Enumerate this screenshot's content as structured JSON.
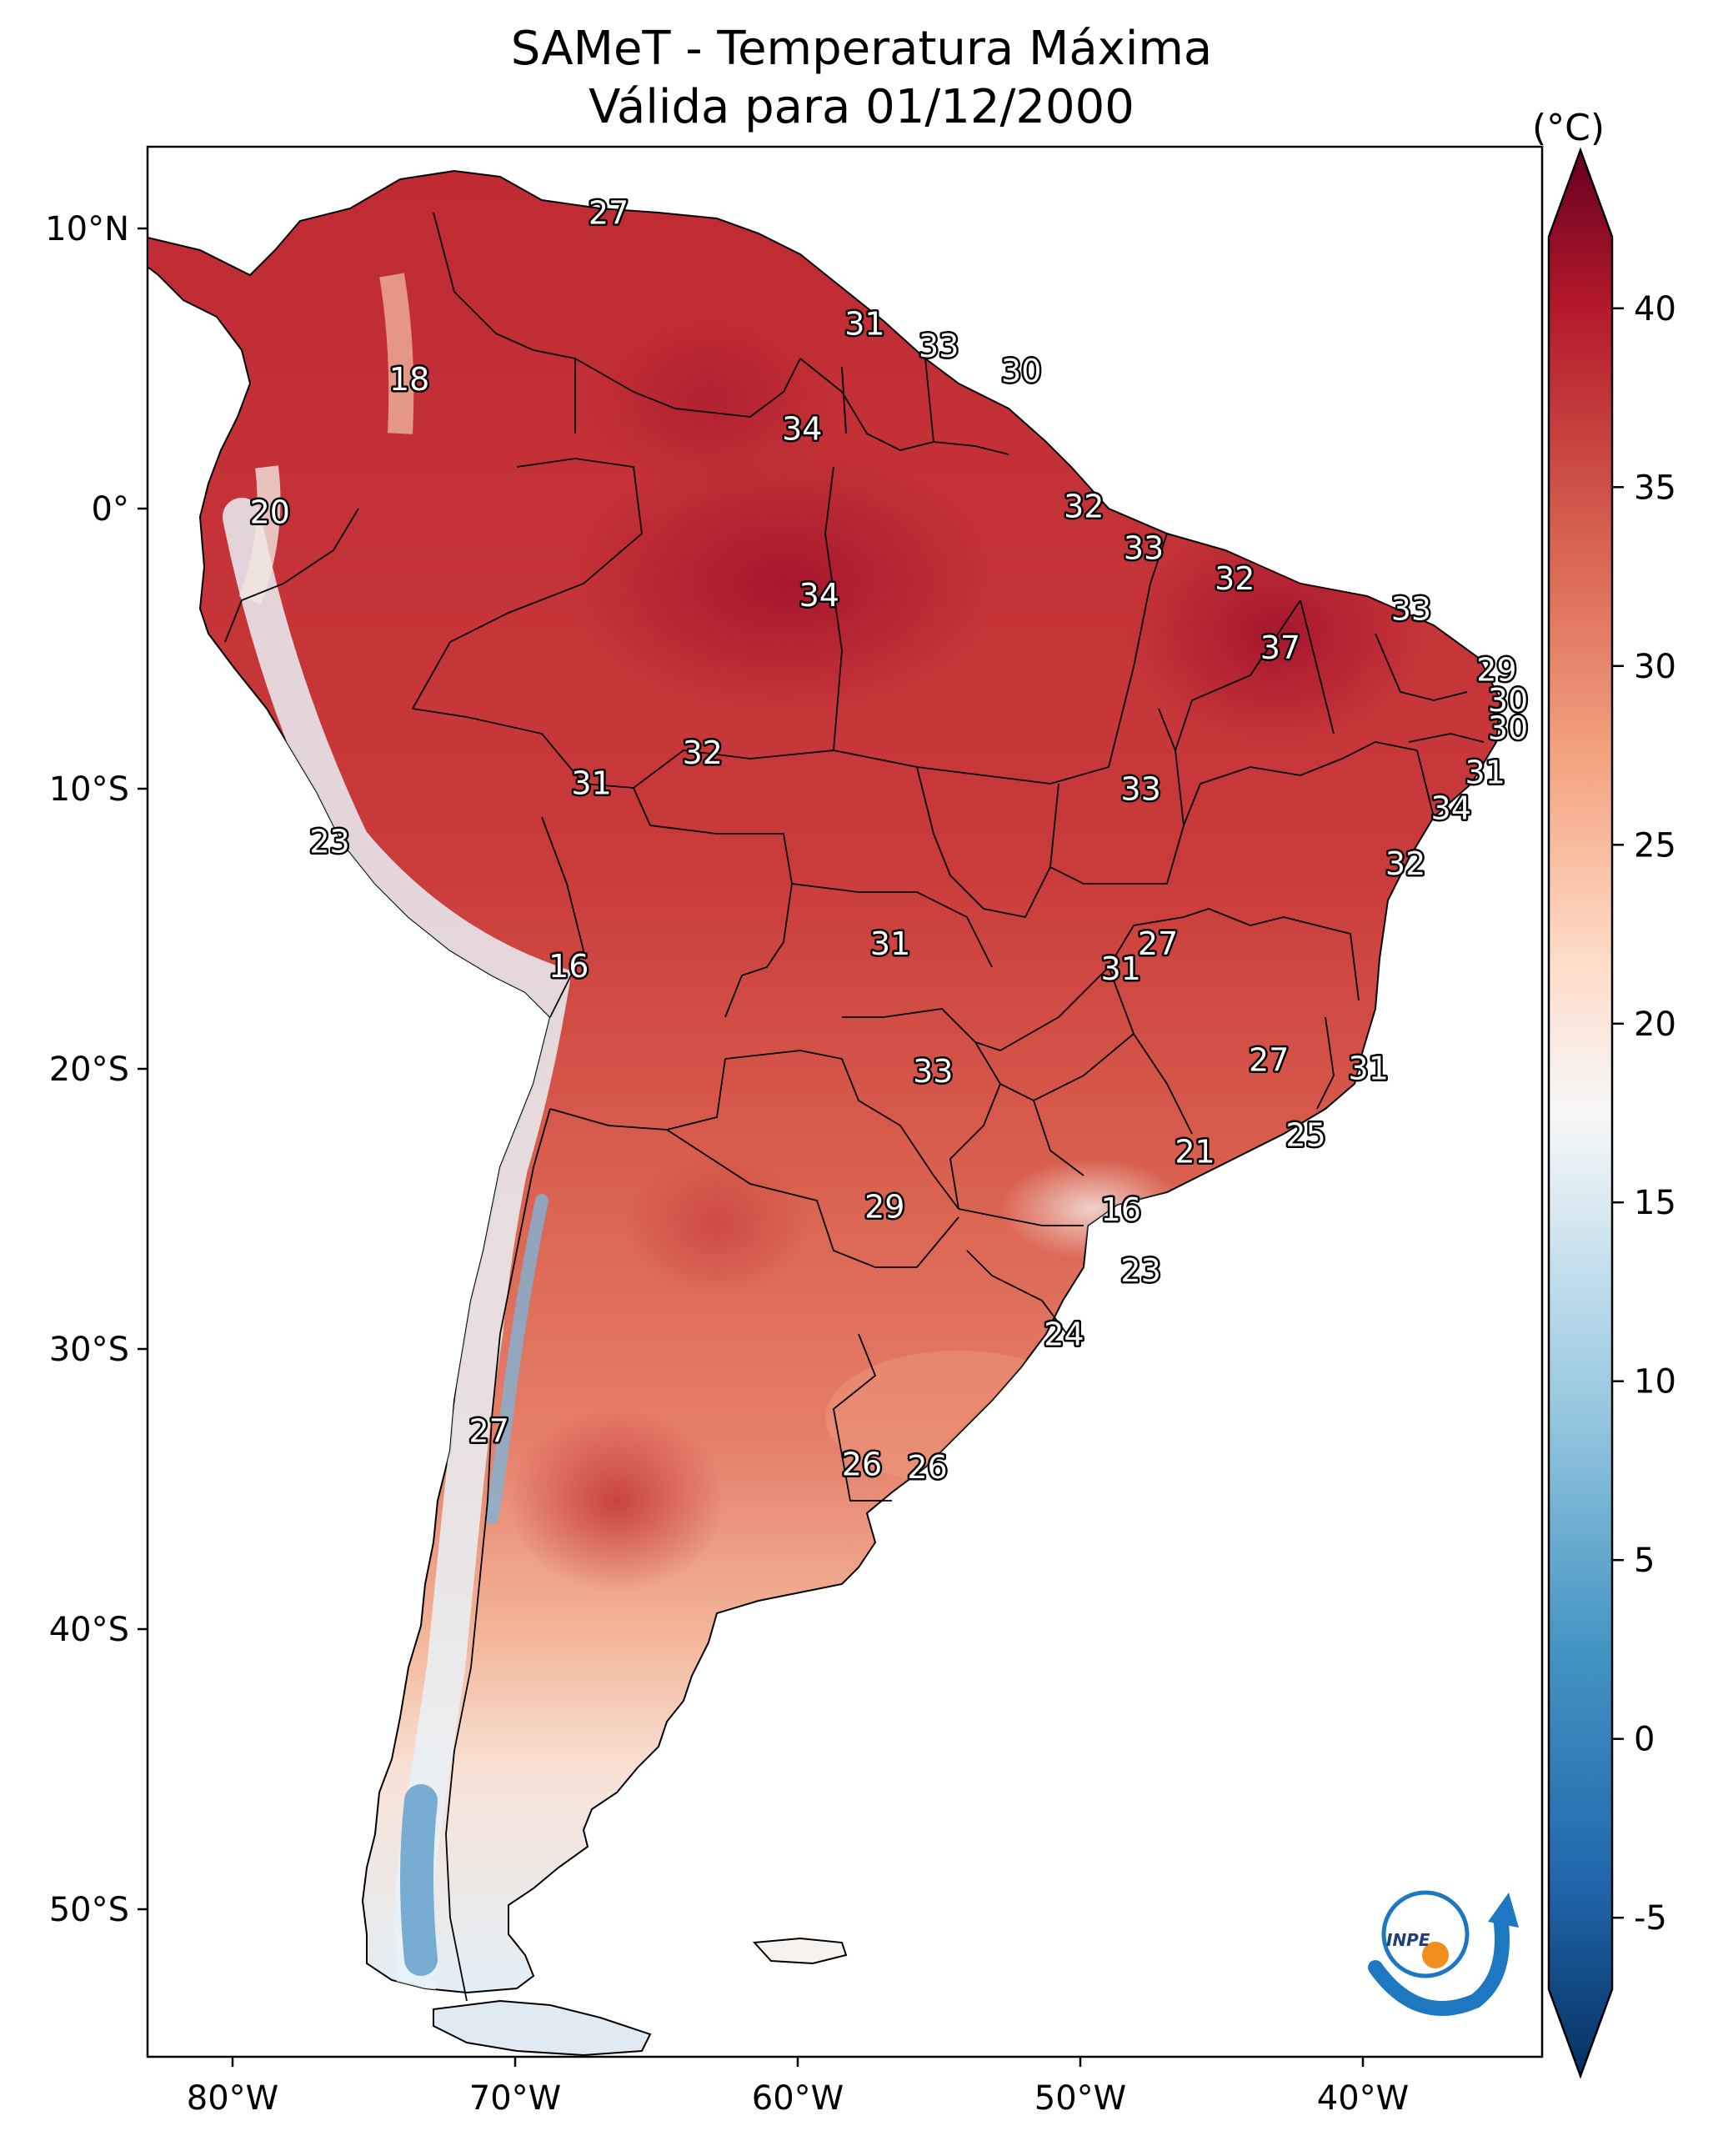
{
  "title_line1": "SAMeT - Temperatura Máxima",
  "title_line2": "Válida para 01/12/2000",
  "colorbar": {
    "unit": "(°C)",
    "ticks": [
      "40",
      "35",
      "30",
      "25",
      "20",
      "15",
      "10",
      "5",
      "0",
      "-5"
    ],
    "range": [
      -7,
      42
    ],
    "colormap": "RdBu_r"
  },
  "axes": {
    "lat_labels": [
      "10°N",
      "0°",
      "10°S",
      "20°S",
      "30°S",
      "40°S",
      "50°S"
    ],
    "lon_labels": [
      "80°W",
      "70°W",
      "60°W",
      "50°W",
      "40°W"
    ],
    "lon_range": [
      -83,
      -34
    ],
    "lat_range": [
      -56,
      13
    ]
  },
  "temperature_labels": [
    {
      "text": "27",
      "lon": -66.8,
      "lat": 10.6
    },
    {
      "text": "18",
      "lon": -73.8,
      "lat": 4.6
    },
    {
      "text": "20",
      "lon": -78.7,
      "lat": -0.2
    },
    {
      "text": "23",
      "lon": -76.6,
      "lat": -12.1
    },
    {
      "text": "16",
      "lon": -68.2,
      "lat": -16.6
    },
    {
      "text": "27",
      "lon": -71.0,
      "lat": -33.4
    },
    {
      "text": "31",
      "lon": -57.8,
      "lat": 6.6
    },
    {
      "text": "33",
      "lon": -55.2,
      "lat": 5.8
    },
    {
      "text": "30",
      "lon": -52.3,
      "lat": 4.9
    },
    {
      "text": "34",
      "lon": -60.0,
      "lat": 2.8
    },
    {
      "text": "34",
      "lon": -59.4,
      "lat": -3.2
    },
    {
      "text": "32",
      "lon": -50.1,
      "lat": 0.0
    },
    {
      "text": "33",
      "lon": -48.0,
      "lat": -1.5
    },
    {
      "text": "32",
      "lon": -44.8,
      "lat": -2.6
    },
    {
      "text": "33",
      "lon": -38.6,
      "lat": -3.7
    },
    {
      "text": "37",
      "lon": -43.2,
      "lat": -5.1
    },
    {
      "text": "29",
      "lon": -35.6,
      "lat": -5.9
    },
    {
      "text": "30",
      "lon": -35.2,
      "lat": -7.0
    },
    {
      "text": "30",
      "lon": -35.2,
      "lat": -8.0
    },
    {
      "text": "31",
      "lon": -36.0,
      "lat": -9.6
    },
    {
      "text": "34",
      "lon": -37.2,
      "lat": -10.9
    },
    {
      "text": "32",
      "lon": -38.8,
      "lat": -12.9
    },
    {
      "text": "32",
      "lon": -63.5,
      "lat": -8.9
    },
    {
      "text": "31",
      "lon": -67.4,
      "lat": -10.0
    },
    {
      "text": "33",
      "lon": -48.1,
      "lat": -10.2
    },
    {
      "text": "31",
      "lon": -56.9,
      "lat": -15.8
    },
    {
      "text": "27",
      "lon": -47.5,
      "lat": -15.8
    },
    {
      "text": "31",
      "lon": -48.8,
      "lat": -16.7
    },
    {
      "text": "27",
      "lon": -43.6,
      "lat": -20.0
    },
    {
      "text": "31",
      "lon": -40.1,
      "lat": -20.3
    },
    {
      "text": "33",
      "lon": -55.4,
      "lat": -20.4
    },
    {
      "text": "25",
      "lon": -42.3,
      "lat": -22.7
    },
    {
      "text": "21",
      "lon": -46.2,
      "lat": -23.3
    },
    {
      "text": "29",
      "lon": -57.1,
      "lat": -25.3
    },
    {
      "text": "16",
      "lon": -48.8,
      "lat": -25.4
    },
    {
      "text": "23",
      "lon": -48.1,
      "lat": -27.6
    },
    {
      "text": "24",
      "lon": -50.8,
      "lat": -29.9
    },
    {
      "text": "26",
      "lon": -57.9,
      "lat": -34.6
    },
    {
      "text": "26",
      "lon": -55.6,
      "lat": -34.7
    }
  ],
  "colors": {
    "hot": "#b5202f",
    "warm": "#e06b52",
    "mild": "#f6c2a6",
    "neutral": "#f7f7f7",
    "cool": "#bddcec",
    "cold": "#4a8fc2"
  },
  "logo": {
    "text": "INPE"
  }
}
